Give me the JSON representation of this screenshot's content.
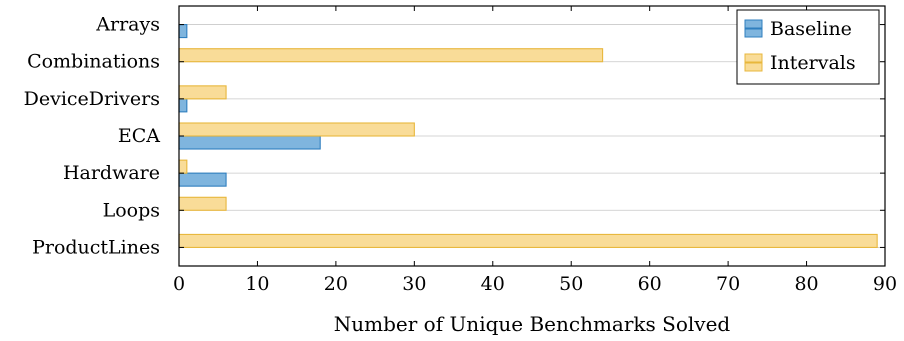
{
  "chart_data": {
    "type": "bar",
    "orientation": "horizontal",
    "categories": [
      "Arrays",
      "Combinations",
      "DeviceDrivers",
      "ECA",
      "Hardware",
      "Loops",
      "ProductLines"
    ],
    "series": [
      {
        "name": "Baseline",
        "values": [
          1,
          0,
          1,
          18,
          6,
          0,
          0
        ],
        "fill": "#7fb5de",
        "stroke": "#2f7fbf"
      },
      {
        "name": "Intervals",
        "values": [
          0,
          54,
          6,
          30,
          1,
          6,
          89
        ],
        "fill": "#f9dc98",
        "stroke": "#e8b73c"
      }
    ],
    "title": "",
    "xlabel": "Number of Unique Benchmarks Solved",
    "ylabel": "",
    "xlim": [
      0,
      90
    ],
    "xticks": [
      0,
      10,
      20,
      30,
      40,
      50,
      60,
      70,
      80,
      90
    ],
    "grid": "horizontal",
    "legend_position": "top-right"
  }
}
